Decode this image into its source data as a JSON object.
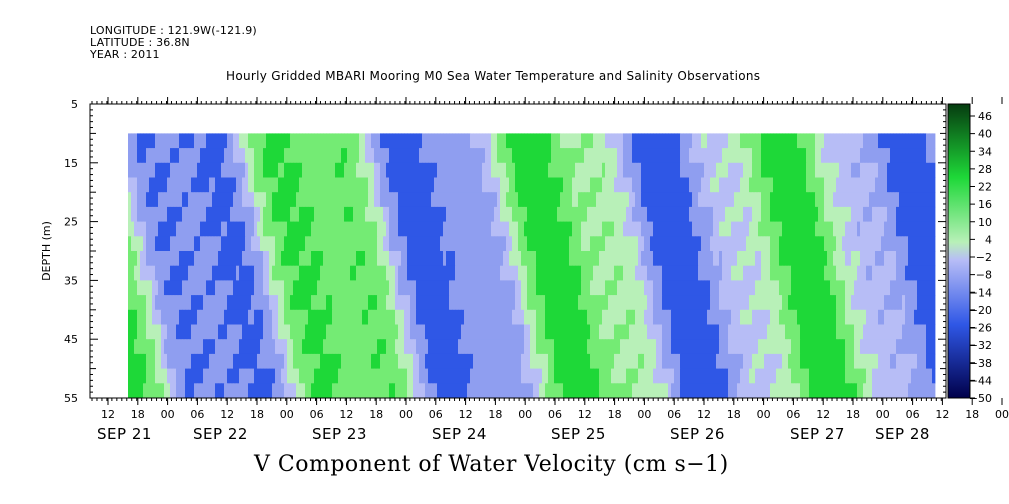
{
  "header": {
    "longitude": "LONGITUDE : 121.9W(-121.9)",
    "latitude": "LATITUDE : 36.8N",
    "year": "YEAR : 2011"
  },
  "chart_data": {
    "type": "heatmap",
    "title": "Hourly Gridded MBARI Mooring M0 Sea Water Temperature and Salinity Observations",
    "xlabel": "V Component of Water Velocity (cm s−1)",
    "ylabel": "DEPTH (m)",
    "ylim": [
      55,
      5
    ],
    "y_ticks": [
      5,
      15,
      25,
      35,
      45,
      55
    ],
    "data_depth_range": [
      10,
      55
    ],
    "x_hour_ticks": [
      "12",
      "18",
      "00",
      "06",
      "12",
      "18",
      "00",
      "06",
      "12",
      "18",
      "00",
      "06",
      "12",
      "18",
      "00",
      "06",
      "12",
      "18",
      "00",
      "06",
      "12",
      "18",
      "00",
      "06",
      "12",
      "18",
      "00",
      "06",
      "12",
      "18",
      "00",
      "06"
    ],
    "x_dates": [
      "SEP 21",
      "SEP 22",
      "SEP 23",
      "SEP 24",
      "SEP 25",
      "SEP 26",
      "SEP 27",
      "SEP 28"
    ],
    "colorbar_levels": [
      46,
      40,
      34,
      28,
      22,
      16,
      10,
      4,
      -2,
      -8,
      -14,
      -20,
      -26,
      -32,
      -38,
      -44,
      -50
    ],
    "colors": {
      "neg_strong": "#00004a",
      "neg_mid": "#2f57e6",
      "neg_light": "#8f9ef0",
      "neg_pale": "#b7bdf6",
      "pos_pale": "#b8f0b8",
      "pos_light": "#74eb74",
      "pos_mid": "#1ed838",
      "pos_strong": "#063c10"
    }
  }
}
